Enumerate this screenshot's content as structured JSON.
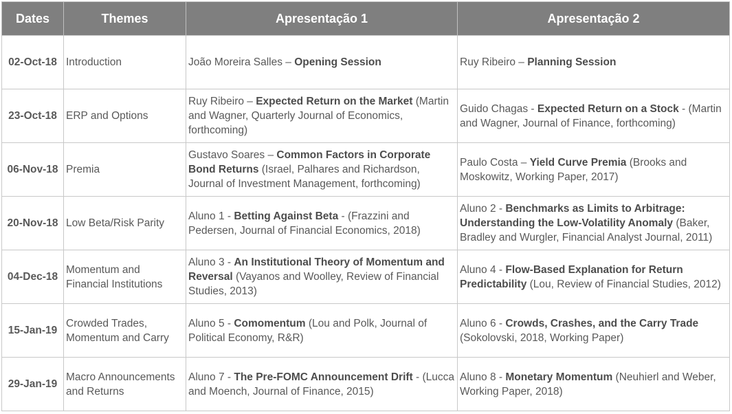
{
  "headers": {
    "dates": "Dates",
    "themes": "Themes",
    "pres1": "Apresentação 1",
    "pres2": "Apresentação 2"
  },
  "rows": [
    {
      "date": "02-Oct-18",
      "theme": [
        "Introduction"
      ],
      "p1": {
        "author": "João Moreira Salles",
        "sep": " – ",
        "title": "Opening Session",
        "ref": ""
      },
      "p2": {
        "author": "Ruy Ribeiro",
        "sep": " – ",
        "title": "Planning Session",
        "ref": ""
      }
    },
    {
      "date": "23-Oct-18",
      "theme": [
        "ERP and Options"
      ],
      "p1": {
        "author": "Ruy Ribeiro",
        "sep": " – ",
        "title": "Expected Return on the Market",
        "ref": " (Martin and Wagner, Quarterly Journal of Economics, forthcoming)"
      },
      "p2": {
        "author": "Guido Chagas",
        "sep": " - ",
        "title": "Expected Return on a Stock",
        "ref": " - (Martin and Wagner, Journal of Finance, forthcoming)"
      }
    },
    {
      "date": "06-Nov-18",
      "theme": [
        "Premia"
      ],
      "p1": {
        "author": "Gustavo Soares",
        "sep": " – ",
        "title": "Common Factors in Corporate Bond Returns",
        "ref": " (Israel, Palhares and Richardson, Journal of Investment Management, forthcoming)"
      },
      "p2": {
        "author": "Paulo Costa",
        "sep": " – ",
        "title": "Yield Curve Premia",
        "ref": " (Brooks and Moskowitz, Working Paper, 2017)"
      }
    },
    {
      "date": "20-Nov-18",
      "theme": [
        "Low Beta/Risk Parity"
      ],
      "p1": {
        "author": "Aluno 1",
        "sep": " - ",
        "title": "Betting Against Beta",
        "ref": " - (Frazzini and Pedersen, Journal of Financial Economics, 2018)"
      },
      "p2": {
        "author": "Aluno 2",
        "sep": " - ",
        "title": "Benchmarks as Limits to Arbitrage: Understanding the Low-Volatility Anomaly",
        "ref": " (Baker, Bradley and Wurgler, Financial Analyst Journal, 2011)"
      }
    },
    {
      "date": "04-Dec-18",
      "theme": [
        "Momentum and",
        "Financial Institutions"
      ],
      "p1": {
        "author": "Aluno 3",
        "sep": " - ",
        "title": "An Institutional Theory of Momentum and Reversal",
        "ref": " (Vayanos and Woolley,  Review of Financial Studies, 2013)"
      },
      "p2": {
        "author": "Aluno 4",
        "sep": " - ",
        "title": "Flow-Based Explanation for Return Predictability",
        "ref": " (Lou, Review of Financial Studies, 2012)"
      }
    },
    {
      "date": "15-Jan-19",
      "theme": [
        "Crowded Trades,",
        "Momentum and Carry"
      ],
      "p1": {
        "author": "Aluno 5",
        "sep": " - ",
        "title": "Comomentum",
        "ref": " (Lou and Polk, Journal of Political Economy, R&R)"
      },
      "p2": {
        "author": "Aluno 6",
        "sep": " - ",
        "title": "Crowds, Crashes, and the Carry Trade",
        "ref": " (Sokolovski, 2018, Working Paper)"
      }
    },
    {
      "date": "29-Jan-19",
      "theme": [
        "Macro Announcements",
        "and Returns"
      ],
      "p1": {
        "author": "Aluno 7",
        "sep": " - ",
        "title": "The Pre-FOMC Announcement Drift",
        "ref": " - (Lucca and Moench, Journal of Finance, 2015)"
      },
      "p2": {
        "author": "Aluno 8",
        "sep": " - ",
        "title": "Monetary Momentum",
        "ref": " (Neuhierl and Weber, Working Paper, 2018)"
      }
    }
  ]
}
